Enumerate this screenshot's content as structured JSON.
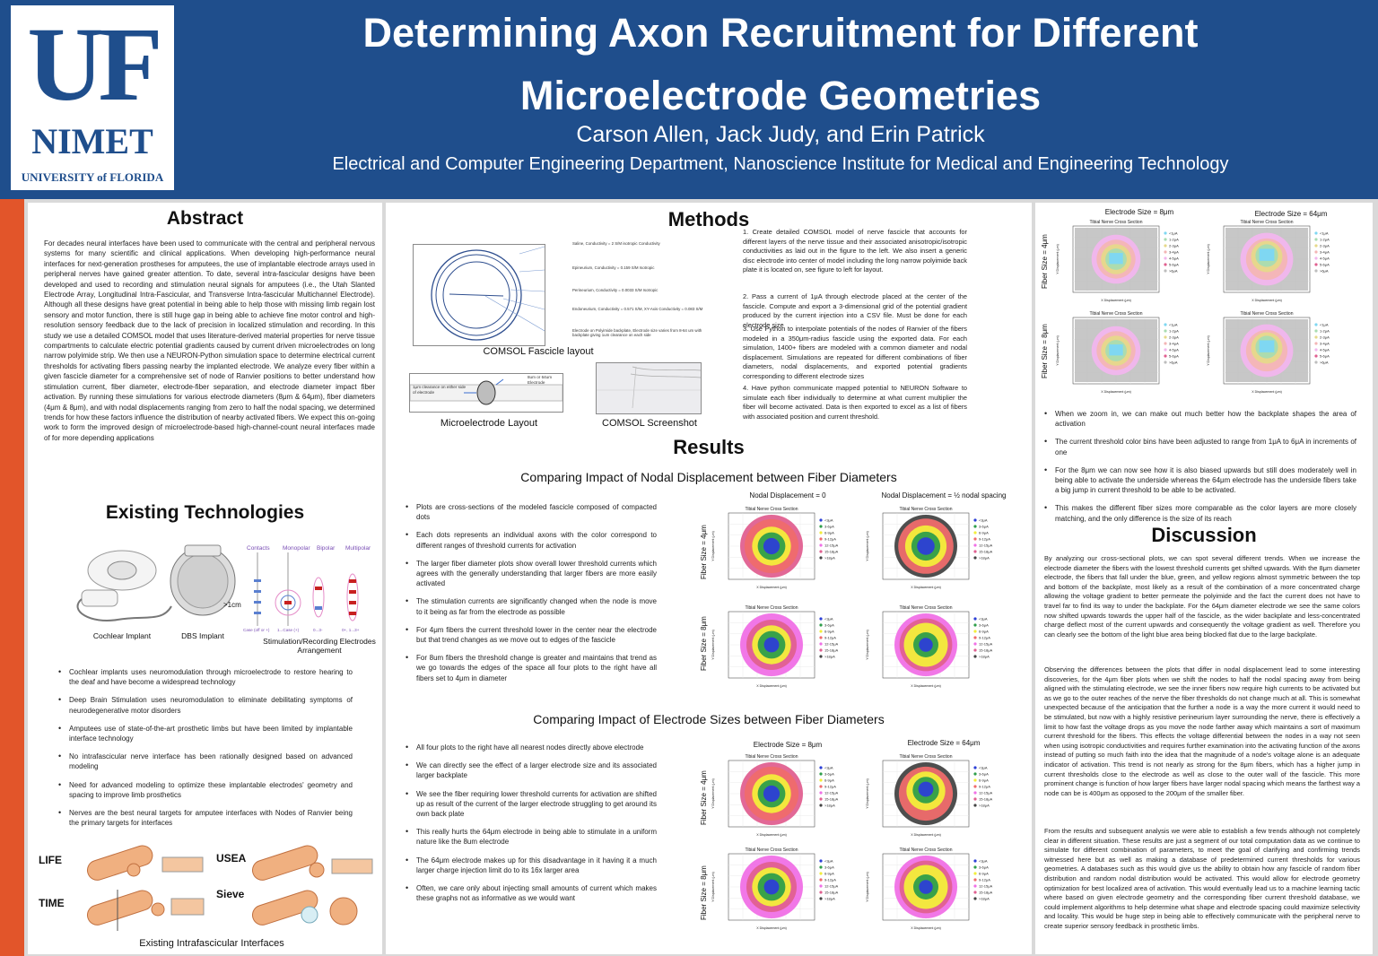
{
  "header": {
    "logo_top": "UF",
    "logo_mid": "NIMET",
    "logo_bottom": "UNIVERSITY of FLORIDA",
    "title_line1": "Determining Axon Recruitment for Different",
    "title_line2": "Microelectrode Geometries",
    "authors": "Carson Allen, Jack Judy, and Erin Patrick",
    "department": "Electrical and Computer Engineering Department, Nanoscience Institute for Medical and Engineering Technology"
  },
  "abstract": {
    "heading": "Abstract",
    "text": "For decades neural interfaces have been used to communicate with the central and peripheral nervous systems for many scientific and clinical applications. When developing high-performance neural interfaces for next-generation prostheses for amputees, the use of implantable electrode arrays used in peripheral nerves have gained greater attention. To date, several intra-fascicular designs have been developed and used to recording and stimulation neural signals for amputees (i.e., the Utah Slanted Electrode Array, Longitudinal Intra-Fascicular, and Transverse Intra-fascicular Multichannel Electrode). Although all these designs have great potential in being able to help those with missing limb regain lost sensory and motor function, there is still huge gap in being able to achieve fine motor control and high-resolution sensory feedback due to the lack of precision in localized stimulation and recording. In this study we use a detailed COMSOL model that uses literature-derived material properties for nerve tissue compartments to calculate electric potential gradients caused by current driven microelectrodes on long narrow polyimide strip. We then use a NEURON-Python simulation space to determine electrical current thresholds for activating fibers passing nearby the implanted electrode. We analyze every fiber within a given fascicle diameter for a comprehensive set of node of Ranvier positions to better understand how stimulation current, fiber diameter, electrode-fiber separation, and electrode diameter impact fiber activation. By running these simulations for various electrode diameters (8μm & 64μm), fiber diameters (4μm & 8μm), and with nodal displacements ranging from zero to half the nodal spacing, we determined trends for how these factors influence the distribution of nearby activated fibers. We expect this on-going work to form the improved design of microelectrode-based high-channel-count neural interfaces made of for more depending applications"
  },
  "existing": {
    "heading": "Existing Technologies",
    "cochlear_caption": "Cochlear Implant",
    "dbs_caption": "DBS Implant",
    "stim_caption": "Stimulation/Recording Electrodes Arrangement",
    "stim_labels": [
      "Contacts",
      "Monopolar",
      "Bipolar",
      "Multipolar"
    ],
    "scale_label": ">1cm",
    "stim_sub": [
      "Case (off or +)",
      "1...Case (+)",
      "0...3-",
      "0+, 1...3+"
    ],
    "bullets": [
      "Cochlear implants uses neuromodulation through microelectrode to restore hearing to the deaf and have become a widespread technology",
      "Deep Brain Stimulation uses neuromodulation to eliminate debilitating symptoms of neurodegenerative motor disorders",
      "Amputees use of state-of-the-art prosthetic limbs but have been limited by implantable interface technology",
      "No intrafascicular nerve interface has been rationally designed based on advanced modeling",
      "Need for advanced modeling to optimize these implantable electrodes' geometry and spacing to improve limb prosthetics",
      "Nerves are the best neural targets for amputee interfaces with Nodes of Ranvier being the primary targets for interfaces"
    ],
    "interface_labels": [
      "LIFE",
      "USEA",
      "TIME",
      "Sieve"
    ],
    "interface_caption": "Existing Intrafascicular Interfaces"
  },
  "methods": {
    "heading": "Methods",
    "fascicle_labels": [
      "Saline, Conductivity = 2 S/M isotropic Conductivity",
      "Epineurium, Conductivity = 0.159 S/M Isotropic",
      "Perineurium, Conductivity = 0.0033 S/M Isotropic",
      "Endoneurium, Conductivity = 0.571 S/M, XY-Axis Conductivity = 0.083 S/M",
      "Electrode on Polyimide backplate, Electrode size varies from 8-64 um with backplate giving 1um clearance on each side"
    ],
    "fascicle_caption": "COMSOL Fascicle layout",
    "electrode_labels": [
      "1μm clearance on either side of electrode",
      "8um or 64um Electrode"
    ],
    "electrode_caption": "Microelectrode Layout",
    "comsol_caption": "COMSOL Screenshot",
    "steps": [
      "1. Create detailed COMSOL model of nerve fascicle that accounts for different layers of the nerve tissue and their associated anisotropic/isotropic conductivities as laid out in the figure to the left. We also insert a generic disc electrode into center of model including the long narrow polyimide back plate it is located on, see figure to left for layout.",
      "2. Pass a current of 1μA through electrode placed at the center of the fascicle. Compute and export a 3-dimensional grid of the potential gradient produced by the current injection into a CSV file. Must be done for each electrode size",
      "3. Use Python to interpolate potentials of the nodes of Ranvier of the fibers modeled in a 350μm-radius fascicle using the exported data. For each simulation, 1400+ fibers are modeled with a common diameter and nodal displacement. Simulations are repeated for different combinations of fiber diameters, nodal displacements, and exported potential gradients corresponding to different electrode sizes",
      "4. Have python communicate mapped potential to NEURON Software to simulate each fiber individually to determine at what current multiplier the fiber will become activated. Data is then exported to excel as a list of fibers with associated position and current threshold."
    ]
  },
  "results": {
    "heading": "Results",
    "sub1": "Comparing Impact of Nodal Displacement between Fiber Diameters",
    "bullets1": [
      "Plots are cross-sections of the modeled fascicle composed of compacted dots",
      "Each dots represents an individual axons with the color correspond to different ranges of threshold currents for activation",
      "The larger fiber diameter plots show overall lower threshold currents which agrees with the generally understanding that larger fibers are more easily activated",
      "The stimulation currents are significantly changed when the node is move to it being as far from the electrode as possible",
      "For 4μm fibers the current threshold lower in the center near the electrode but that trend changes as we move out to edges of the fascicle",
      "For 8um fibers the threshold change is greater and maintains that trend as we go towards the edges of the space all four plots to the right have all fibers set to 4μm in diameter"
    ],
    "grid1_cols": [
      "Nodal Displacement = 0",
      "Nodal Displacement = ½ nodal spacing"
    ],
    "grid1_rows": [
      "Fiber Size = 4μm",
      "Fiber Size = 8μm"
    ],
    "sub2": "Comparing Impact of Electrode Sizes between Fiber Diameters",
    "bullets2": [
      "All four plots to the right have all nearest nodes directly above electrode",
      "We can directly see the effect of a larger electrode size and its associated larger backplate",
      "We see the fiber requiring lower threshold currents for activation are shifted up as result of the current of the larger electrode struggling to get around its own back plate",
      "This really hurts the 64μm electrode in being able to stimulate in a uniform nature like the 8um electrode",
      "The 64μm electrode makes up for this disadvantage in it having it a much larger charge injection limit do to its 16x larger area",
      "Often, we care only about injecting small amounts of current which makes these graphs not as informative as we would want"
    ],
    "grid2_cols": [
      "Electrode Size = 8μm",
      "Electrode Size = 64μm"
    ],
    "grid2_rows": [
      "Fiber Size = 4μm",
      "Fiber Size = 8μm"
    ],
    "plot_title": "Tibial Nerve Cross Section",
    "x_axis_label": "X Displacement (μm)",
    "y_axis_label": "Y Displacement (μm)",
    "legend_large": [
      "<3μA",
      "3-6μA",
      "6-9μA",
      "9-12μA",
      "12-15μA",
      "15-18μA",
      ">18μA"
    ],
    "legend_small": [
      "<1μA",
      "1-2μA",
      "2-3μA",
      "3-4μA",
      "4-5μA",
      "5-6μA",
      ">6μA"
    ],
    "colors": {
      "ring1": "#2c3fd6",
      "ring2": "#2e9e4a",
      "ring3": "#f3ee3a",
      "ring4": "#ef6b6b",
      "ring5": "#f070e6",
      "ring6": "#e06090",
      "ring7": "#444444",
      "zoom1": "#7fd7f2",
      "zoom2": "#a9dcb1",
      "zoom3": "#e6d98a",
      "zoom4": "#f3b5b5",
      "zoom5": "#f2b6ee",
      "zoom_bg": "#bdbdbd"
    }
  },
  "right": {
    "grid_cols": [
      "Electrode Size = 8μm",
      "Electrode Size = 64μm"
    ],
    "grid_rows": [
      "Fiber Size = 4μm",
      "Fiber Size = 8μm"
    ],
    "bullets": [
      "When we zoom in, we can make out much better how the backplate shapes the area of activation",
      "The current threshold color bins have been adjusted to range from 1μA to 6μA in increments of one",
      "For the 8μm we can now see how it is also biased upwards but still does moderately well in being able to activate the underside whereas the 64μm electrode has the underside fibers take a big jump in current threshold to be able to be activated.",
      "This makes the different fiber sizes more comparable as the color layers are more closely matching, and the only difference is the size of its reach"
    ],
    "discussion_heading": "Discussion",
    "discussion": [
      "By analyzing our cross-sectional plots, we can spot several different trends. When we increase the electrode diameter the fibers with the lowest threshold currents get shifted upwards. With the 8μm diameter electrode, the fibers that fall under the blue, green, and yellow regions almost symmetric between the top and bottom of the backplate, most likely as a result of the combination of a more concentrated charge allowing the voltage gradient to better permeate the polyimide and the fact the current does not have to travel far to find its way to under the backplate. For the 64μm diameter electrode we see the same colors now shifted upwards towards the upper half of the fascicle, as the wider backplate and less-concentrated charge deflect most of the current upwards and consequently the voltage gradient as well. Therefore you can clearly see the bottom of the light blue area being blocked flat due to the large backplate.",
      "Observing the differences between the plots that differ in nodal displacement lead to some interesting discoveries, for the 4μm fiber plots when we shift the nodes to half the nodal spacing away from being aligned with the stimulating electrode, we see the inner fibers now require high currents to be activated but as we go to the outer reaches of the nerve the fiber thresholds do not change much at all. This is somewhat unexpected because of the anticipation that the further a node is a way the more current it would need to be stimulated, but now with a highly resistive perineurium layer surrounding the nerve, there is effectively a limit to how fast the voltage drops as you move the node farther away which maintains a sort of maximum current threshold for the fibers. This effects the voltage differential between the nodes in a way not seen when using isotropic conductivities and requires further examination into the activating function of the axons instead of putting so much faith into the idea that the magnitude of a node's voltage alone is an adequate indicator of activation. This trend is not nearly as strong for the 8μm fibers, which has a higher jump in current thresholds close to the electrode as well as close to the outer wall of the fascicle. This more prominent change is function of how larger fibers have larger nodal spacing which means the farthest way a node can be is 400μm as opposed to the 200μm of the smaller fiber.",
      "From the results and subsequent analysis we were able to establish a few trends although not completely clear in different situation. These results are just a segment of our total computation data as we continue to simulate for different combination of parameters, to meet the goal of clarifying and confirming trends witnessed here but as well as making a database of predetermined current thresholds for various geometries. A databases such as this would give us the ability to obtain how any fascicle of random fiber distribution and random nodal distribution would be activated. This would allow for electrode geometry optimization for best localized area of activation. This would eventually lead us to a machine learning tactic where based on given electrode geometry and the corresponding fiber current threshold database, we could implement algorithms to help determine what shape and electrode spacing could maximize selectivity and locality. This would be huge step in being able to effectively communicate with the peripheral nerve to create superior sensory feedback in prosthetic limbs."
    ]
  }
}
